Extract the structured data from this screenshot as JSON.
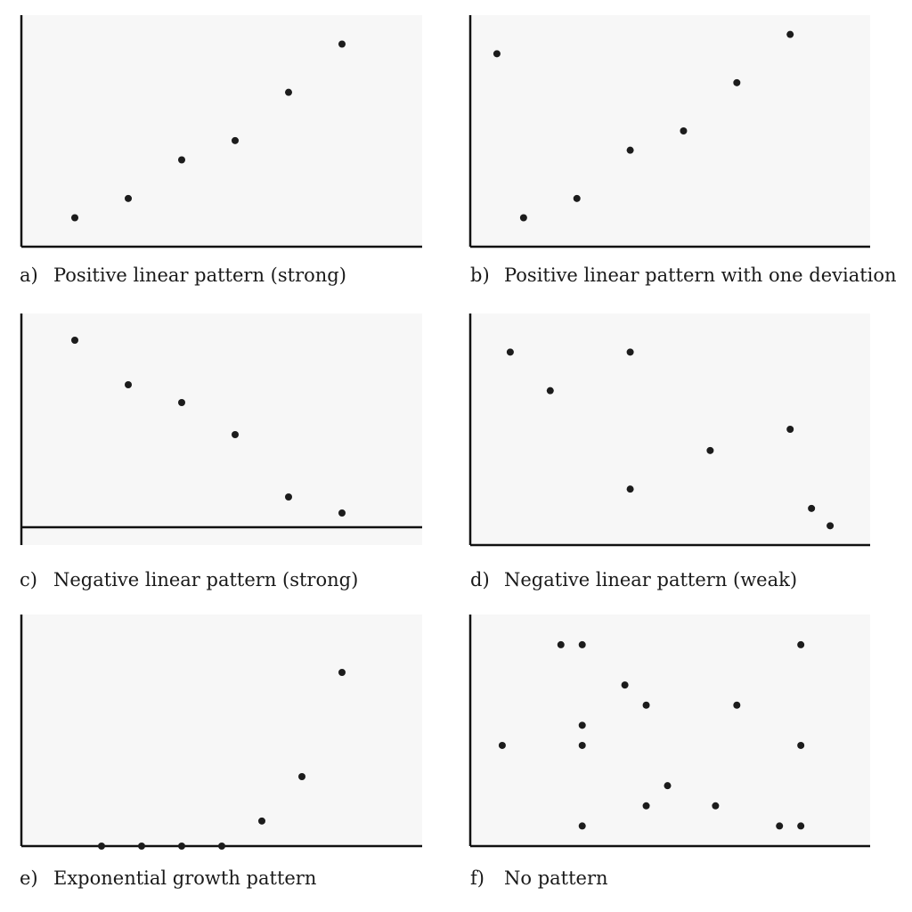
{
  "chart_data": [
    {
      "type": "scatter",
      "letter": "a)",
      "caption": "Positive linear pattern (strong)",
      "x": [
        1,
        2,
        3,
        4,
        5,
        6
      ],
      "y": [
        1.5,
        2.5,
        4.5,
        5.5,
        8,
        10.5
      ],
      "xlim": [
        0,
        7.5
      ],
      "ylim": [
        0,
        12
      ]
    },
    {
      "type": "scatter",
      "letter": "b)",
      "caption": "Positive linear pattern with one deviation",
      "x": [
        0.5,
        1,
        2,
        3,
        4,
        5,
        6
      ],
      "y": [
        10,
        1.5,
        2.5,
        5,
        6,
        8.5,
        11
      ],
      "xlim": [
        0,
        7.5
      ],
      "ylim": [
        0,
        12
      ]
    },
    {
      "type": "scatter",
      "letter": "c)",
      "caption": "Negative linear pattern (strong)",
      "x": [
        1,
        2,
        3,
        4,
        5,
        6
      ],
      "y": [
        10.5,
        8,
        7,
        5.2,
        1.7,
        0.8
      ],
      "xlim": [
        0,
        7.5
      ],
      "ylim": [
        -1,
        12
      ]
    },
    {
      "type": "scatter",
      "letter": "d)",
      "caption": "Negative linear pattern (weak)",
      "x": [
        0.75,
        1.5,
        3,
        3,
        4.5,
        6,
        6.4,
        6.75
      ],
      "y": [
        10,
        8,
        10,
        2.9,
        4.9,
        6,
        1.9,
        1
      ],
      "xlim": [
        0,
        7.5
      ],
      "ylim": [
        0,
        12
      ]
    },
    {
      "type": "scatter",
      "letter": "e)",
      "caption": "Exponential growth pattern",
      "x": [
        1.5,
        2.25,
        3,
        3.75,
        4.5,
        5.25,
        6
      ],
      "y": [
        0,
        0,
        0,
        0,
        1.3,
        3.6,
        9
      ],
      "xlim": [
        0,
        7.5
      ],
      "ylim": [
        0,
        12
      ]
    },
    {
      "type": "scatter",
      "letter": "f)",
      "caption": "No pattern",
      "x": [
        0.6,
        1.7,
        2.1,
        2.1,
        2.1,
        2.1,
        2.9,
        3.3,
        3.3,
        3.7,
        4.6,
        5.0,
        5.8,
        6.2,
        6.2,
        6.2
      ],
      "y": [
        5,
        10,
        10,
        6,
        5,
        1,
        8,
        7,
        2,
        3,
        2,
        7,
        1,
        10,
        5,
        1
      ],
      "xlim": [
        0,
        7.5
      ],
      "ylim": [
        0,
        11.5
      ]
    }
  ]
}
